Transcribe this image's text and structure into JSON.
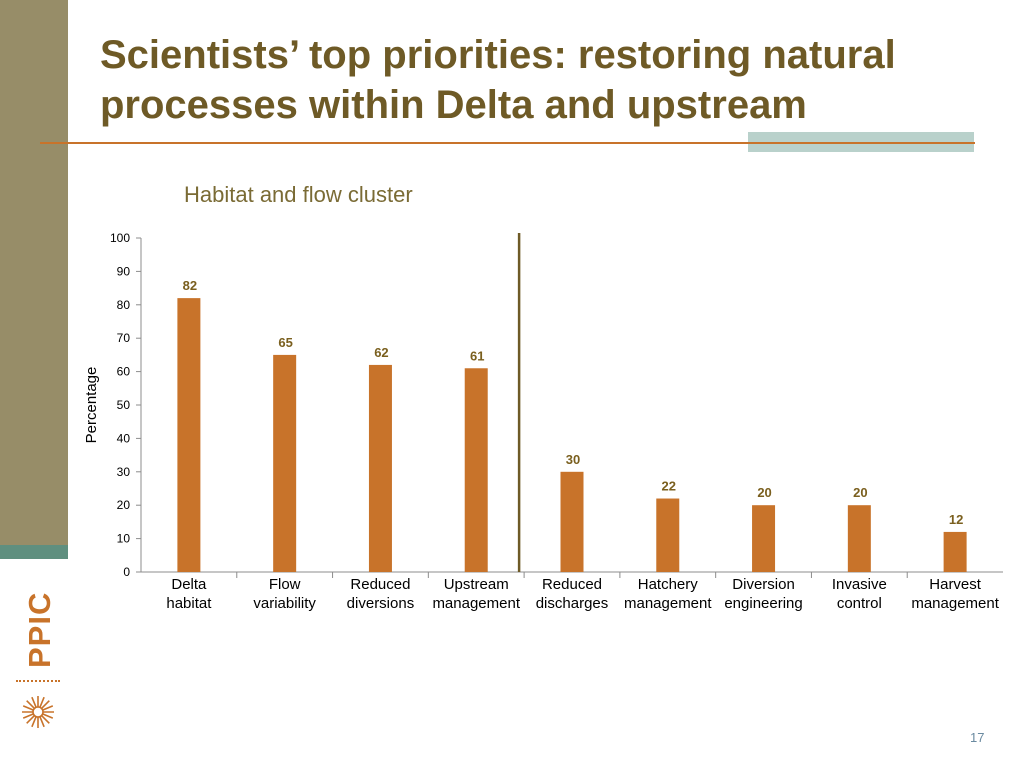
{
  "slide": {
    "title": "Scientists’ top priorities: restoring natural processes within Delta and upstream",
    "subtitle": "Habitat and flow cluster",
    "page_number": "17",
    "logo_text": "PPIC"
  },
  "colors": {
    "bar": "#c8732a",
    "label": "#7a5f1e",
    "divider": "#6e5a26",
    "sidebar": "#978d68",
    "stripe": "#5f8f7f"
  },
  "chart_data": {
    "type": "bar",
    "title": "Habitat and flow cluster",
    "xlabel": "",
    "ylabel": "Percentage",
    "ylim": [
      0,
      100
    ],
    "yticks": [
      0,
      10,
      20,
      30,
      40,
      50,
      60,
      70,
      80,
      90,
      100
    ],
    "categories": [
      [
        "Delta",
        "habitat"
      ],
      [
        "Flow",
        "variability"
      ],
      [
        "Reduced",
        "diversions"
      ],
      [
        "Upstream",
        "management"
      ],
      [
        "Reduced",
        "discharges"
      ],
      [
        "Hatchery",
        "management"
      ],
      [
        "Diversion",
        "engineering"
      ],
      [
        "Invasive",
        "control"
      ],
      [
        "Harvest",
        "management"
      ]
    ],
    "values": [
      82,
      65,
      62,
      61,
      30,
      22,
      20,
      20,
      12
    ],
    "data_labels": [
      "82",
      "65",
      "62",
      "61",
      "30",
      "22",
      "20",
      "20",
      "12"
    ],
    "divider_after_category": 4,
    "grid": false,
    "legend": "none"
  }
}
